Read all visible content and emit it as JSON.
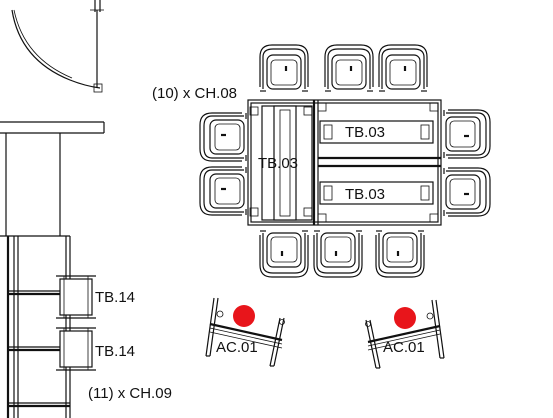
{
  "labels": {
    "chair_count_top": "(10) x CH.08",
    "table_left": "TB.03",
    "table_right_top": "TB.03",
    "table_right_bottom": "TB.03",
    "small_table_1": "TB.14",
    "small_table_2": "TB.14",
    "armchair_left": "AC.01",
    "armchair_right": "AC.01",
    "chair_count_bottom": "(11) x CH.09"
  },
  "colors": {
    "line": "#111111",
    "marker": "#e8151b",
    "background": "#ffffff"
  },
  "icons": {
    "chair": "chair-symbol-icon",
    "armchair": "lounge-armchair-icon",
    "marker": "red-dot-marker-icon"
  }
}
